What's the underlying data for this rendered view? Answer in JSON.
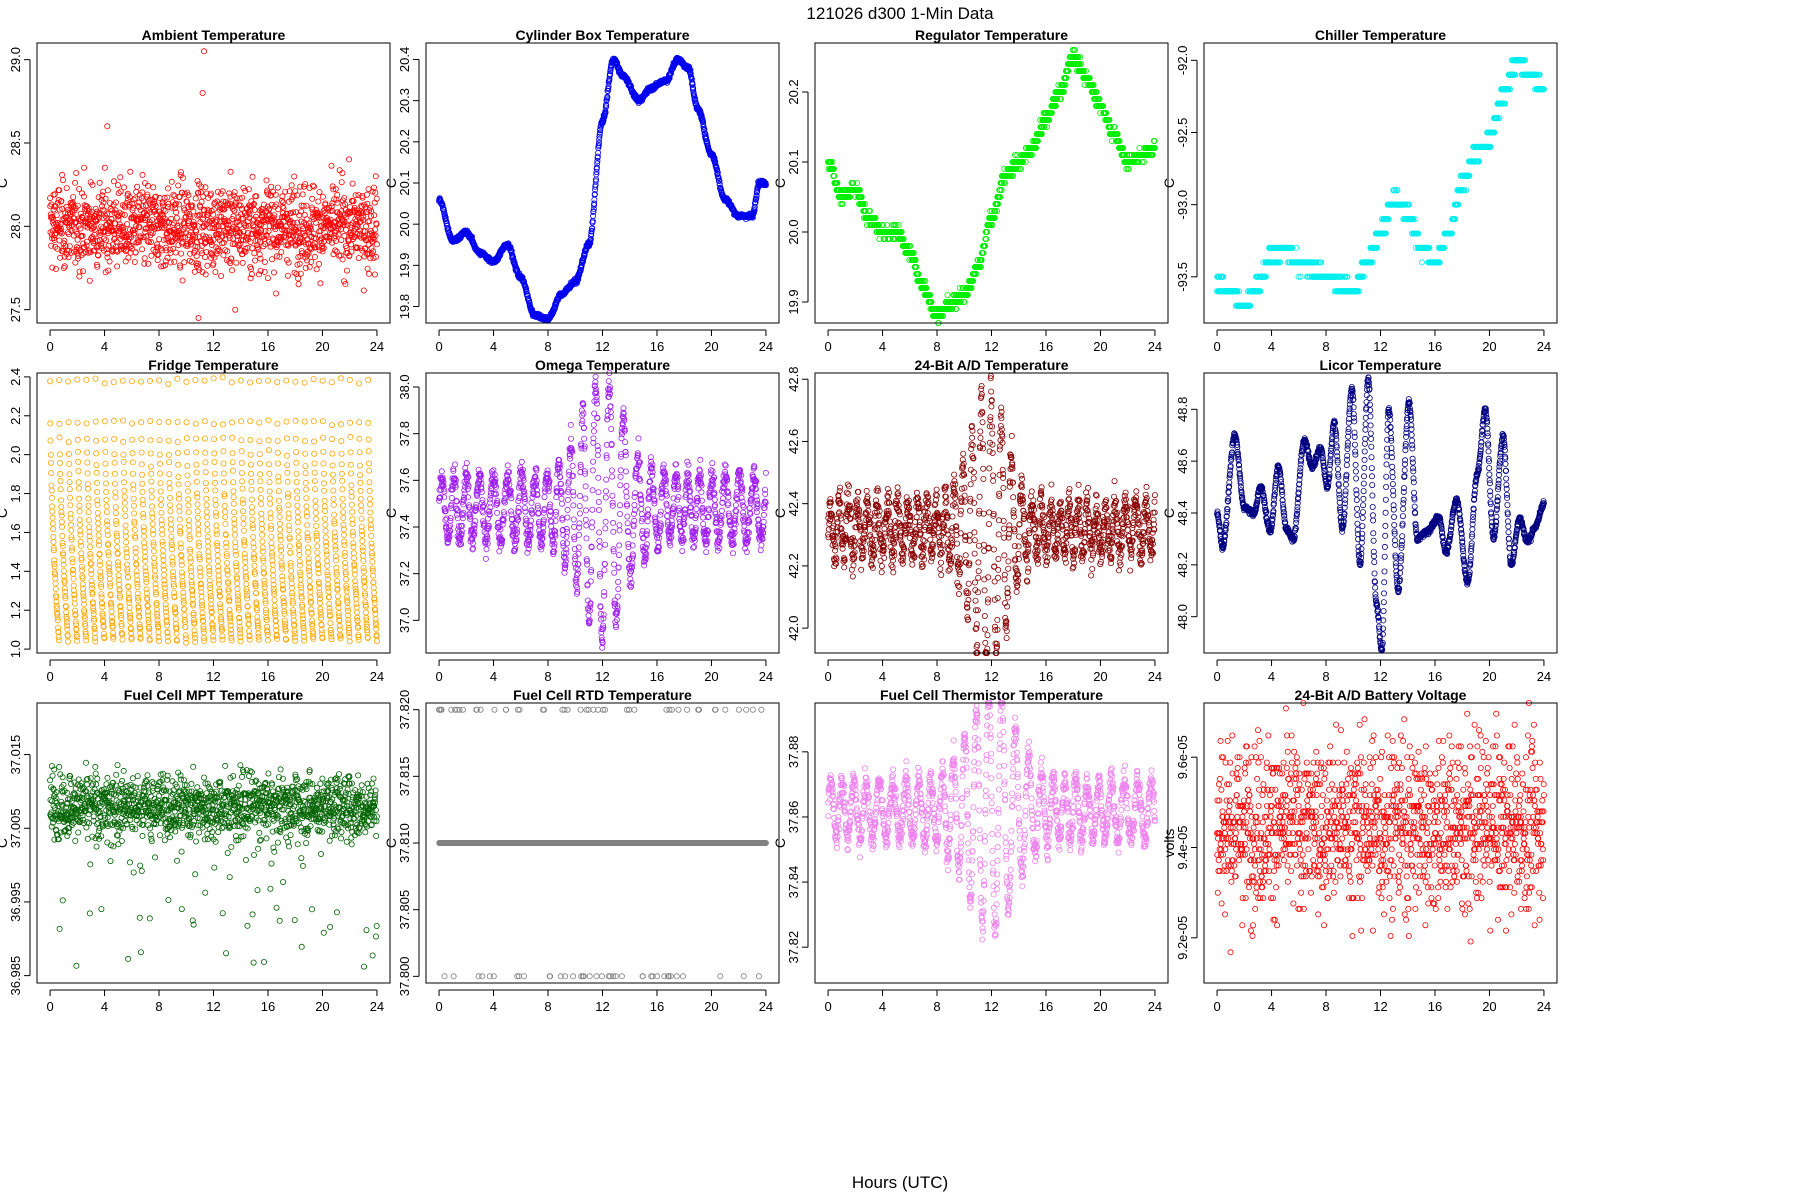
{
  "figure": {
    "title": "121026   d300   1-Min Data",
    "xlabel": "Hours (UTC)"
  },
  "chart_data": [
    {
      "type": "scatter",
      "title": "Ambient Temperature",
      "ylabel": "C",
      "color": "#ff0000",
      "xlim": [
        0,
        24
      ],
      "ylim": [
        27.42,
        29.1
      ],
      "xticks": [
        0,
        4,
        8,
        12,
        16,
        20,
        24
      ],
      "yticks": [
        27.5,
        28.0,
        28.5,
        29.0
      ],
      "ytick_labels": [
        "27.5",
        "28.0",
        "28.5",
        "29.0"
      ],
      "n_points": 1440,
      "gen": "noise",
      "params": {
        "base": 28.0,
        "amp": 0.18,
        "spikes": [
          [
            11.3,
            29.05
          ],
          [
            11.2,
            28.8
          ],
          [
            4.2,
            28.6
          ],
          [
            10.9,
            27.45
          ],
          [
            13.6,
            27.5
          ]
        ]
      }
    },
    {
      "type": "scatter",
      "title": "Cylinder Box Temperature",
      "ylabel": "C",
      "color": "#0000ee",
      "xlim": [
        0,
        24
      ],
      "ylim": [
        19.76,
        20.44
      ],
      "xticks": [
        0,
        4,
        8,
        12,
        16,
        20,
        24
      ],
      "yticks": [
        19.8,
        19.9,
        20.0,
        20.1,
        20.2,
        20.3,
        20.4
      ],
      "ytick_labels": [
        "19.8",
        "19.9",
        "20.0",
        "20.1",
        "20.2",
        "20.3",
        "20.4"
      ],
      "n_points": 1440,
      "gen": "path",
      "params": {
        "knots": [
          [
            0,
            20.06
          ],
          [
            1,
            19.96
          ],
          [
            2,
            19.98
          ],
          [
            3,
            19.93
          ],
          [
            4,
            19.91
          ],
          [
            5,
            19.95
          ],
          [
            6,
            19.87
          ],
          [
            7,
            19.78
          ],
          [
            8,
            19.77
          ],
          [
            9,
            19.83
          ],
          [
            10,
            19.86
          ],
          [
            11,
            19.95
          ],
          [
            12,
            20.25
          ],
          [
            12.8,
            20.4
          ],
          [
            13.5,
            20.36
          ],
          [
            14.7,
            20.3
          ],
          [
            15.5,
            20.33
          ],
          [
            16.7,
            20.35
          ],
          [
            17.5,
            20.4
          ],
          [
            18.3,
            20.38
          ],
          [
            19,
            20.28
          ],
          [
            20,
            20.17
          ],
          [
            21,
            20.06
          ],
          [
            22,
            20.02
          ],
          [
            23,
            20.02
          ],
          [
            23.5,
            20.1
          ],
          [
            24,
            20.1
          ]
        ],
        "noise": 0.004
      }
    },
    {
      "type": "scatter",
      "title": "Regulator Temperature",
      "ylabel": "C",
      "color": "#00ee00",
      "xlim": [
        0,
        24
      ],
      "ylim": [
        19.87,
        20.27
      ],
      "xticks": [
        0,
        4,
        8,
        12,
        16,
        20,
        24
      ],
      "yticks": [
        19.9,
        20.0,
        20.1,
        20.2
      ],
      "ytick_labels": [
        "19.9",
        "20.0",
        "20.1",
        "20.2"
      ],
      "n_points": 1440,
      "gen": "path",
      "params": {
        "knots": [
          [
            0,
            20.1
          ],
          [
            1,
            20.05
          ],
          [
            2,
            20.06
          ],
          [
            3,
            20.02
          ],
          [
            4,
            20.0
          ],
          [
            5,
            20.0
          ],
          [
            6,
            19.97
          ],
          [
            7,
            19.92
          ],
          [
            8,
            19.88
          ],
          [
            9,
            19.9
          ],
          [
            10,
            19.91
          ],
          [
            11,
            19.95
          ],
          [
            12,
            20.02
          ],
          [
            13,
            20.08
          ],
          [
            14,
            20.1
          ],
          [
            15,
            20.12
          ],
          [
            16,
            20.16
          ],
          [
            17,
            20.2
          ],
          [
            18,
            20.25
          ],
          [
            19,
            20.22
          ],
          [
            20,
            20.18
          ],
          [
            21,
            20.14
          ],
          [
            22,
            20.1
          ],
          [
            23,
            20.11
          ],
          [
            24,
            20.12
          ]
        ],
        "noise": 0.006,
        "quant": 0.01
      }
    },
    {
      "type": "scatter",
      "title": "Chiller Temperature",
      "ylabel": "C",
      "color": "#00eeee",
      "xlim": [
        0,
        24
      ],
      "ylim": [
        -93.82,
        -91.88
      ],
      "xticks": [
        0,
        4,
        8,
        12,
        16,
        20,
        24
      ],
      "yticks": [
        -93.5,
        -93.0,
        -92.5,
        -92.0
      ],
      "ytick_labels": [
        "-93.5",
        "-93.0",
        "-92.5",
        "-92.0"
      ],
      "n_points": 1440,
      "gen": "path",
      "params": {
        "knots": [
          [
            0,
            -93.55
          ],
          [
            1,
            -93.6
          ],
          [
            2,
            -93.7
          ],
          [
            3,
            -93.55
          ],
          [
            4,
            -93.35
          ],
          [
            5,
            -93.3
          ],
          [
            6,
            -93.4
          ],
          [
            7,
            -93.45
          ],
          [
            8,
            -93.5
          ],
          [
            9,
            -93.55
          ],
          [
            10,
            -93.6
          ],
          [
            11,
            -93.4
          ],
          [
            12,
            -93.2
          ],
          [
            13,
            -92.95
          ],
          [
            14,
            -93.05
          ],
          [
            15,
            -93.3
          ],
          [
            16,
            -93.4
          ],
          [
            17,
            -93.2
          ],
          [
            18,
            -92.85
          ],
          [
            19,
            -92.65
          ],
          [
            20,
            -92.55
          ],
          [
            21,
            -92.25
          ],
          [
            22,
            -92.0
          ],
          [
            23,
            -92.1
          ],
          [
            24,
            -92.2
          ]
        ],
        "noise": 0.03,
        "quant": 0.1
      }
    },
    {
      "type": "scatter",
      "title": "Fridge Temperature",
      "ylabel": "C",
      "color": "#ffa500",
      "xlim": [
        0,
        24
      ],
      "ylim": [
        0.98,
        2.42
      ],
      "xticks": [
        0,
        4,
        8,
        12,
        16,
        20,
        24
      ],
      "yticks": [
        1.0,
        1.2,
        1.4,
        1.6,
        1.8,
        2.0,
        2.2,
        2.4
      ],
      "ytick_labels": [
        "1.0",
        "1.2",
        "1.4",
        "1.6",
        "1.8",
        "2.0",
        "2.2",
        "2.4"
      ],
      "n_points": 1440,
      "gen": "sawtooth",
      "params": {
        "low": 1.03,
        "high": 2.38,
        "period_min": 40
      }
    },
    {
      "type": "scatter",
      "title": "Omega Temperature",
      "ylabel": "C",
      "color": "#a020f0",
      "xlim": [
        0,
        24
      ],
      "ylim": [
        36.86,
        38.06
      ],
      "xticks": [
        0,
        4,
        8,
        12,
        16,
        20,
        24
      ],
      "yticks": [
        37.0,
        37.2,
        37.4,
        37.6,
        37.8,
        38.0
      ],
      "ytick_labels": [
        "37.0",
        "37.2",
        "37.4",
        "37.6",
        "37.8",
        "38.0"
      ],
      "n_points": 1440,
      "gen": "osc",
      "params": {
        "base": 37.48,
        "amp": 0.14,
        "peak_center": 12,
        "peak_amp": 0.42,
        "peak_width": 2.2,
        "period": 0.95,
        "noise": 0.04
      }
    },
    {
      "type": "scatter",
      "title": "24-Bit A/D Temperature",
      "ylabel": "C",
      "color": "#8b0000",
      "xlim": [
        0,
        24
      ],
      "ylim": [
        41.92,
        42.82
      ],
      "xticks": [
        0,
        4,
        8,
        12,
        16,
        20,
        24
      ],
      "yticks": [
        42.0,
        42.2,
        42.4,
        42.6,
        42.8
      ],
      "ytick_labels": [
        "42.0",
        "42.2",
        "42.4",
        "42.6",
        "42.8"
      ],
      "n_points": 1440,
      "gen": "osc",
      "params": {
        "base": 42.32,
        "amp": 0.08,
        "peak_center": 11.8,
        "peak_amp": 0.38,
        "peak_width": 1.8,
        "period": 0.7,
        "noise": 0.045
      }
    },
    {
      "type": "scatter",
      "title": "Licor Temperature",
      "ylabel": "C",
      "color": "#000080",
      "xlim": [
        0,
        24
      ],
      "ylim": [
        47.86,
        48.94
      ],
      "xticks": [
        0,
        4,
        8,
        12,
        16,
        20,
        24
      ],
      "yticks": [
        48.0,
        48.2,
        48.4,
        48.6,
        48.8
      ],
      "ytick_labels": [
        "48.0",
        "48.2",
        "48.4",
        "48.6",
        "48.8"
      ],
      "n_points": 1440,
      "gen": "path",
      "params": {
        "knots": [
          [
            0,
            48.4
          ],
          [
            0.4,
            48.27
          ],
          [
            1.3,
            48.7
          ],
          [
            2,
            48.42
          ],
          [
            2.7,
            48.4
          ],
          [
            3.2,
            48.5
          ],
          [
            3.9,
            48.33
          ],
          [
            4.5,
            48.58
          ],
          [
            5.1,
            48.34
          ],
          [
            5.6,
            48.3
          ],
          [
            6.4,
            48.68
          ],
          [
            7,
            48.58
          ],
          [
            7.6,
            48.65
          ],
          [
            8.1,
            48.5
          ],
          [
            8.6,
            48.75
          ],
          [
            9.2,
            48.34
          ],
          [
            9.9,
            48.88
          ],
          [
            10.5,
            48.2
          ],
          [
            11.1,
            48.92
          ],
          [
            11.7,
            48.05
          ],
          [
            12.1,
            47.87
          ],
          [
            12.6,
            48.8
          ],
          [
            13.3,
            48.1
          ],
          [
            14.1,
            48.83
          ],
          [
            14.7,
            48.3
          ],
          [
            15.4,
            48.33
          ],
          [
            16.3,
            48.38
          ],
          [
            16.8,
            48.25
          ],
          [
            17.6,
            48.45
          ],
          [
            18.4,
            48.13
          ],
          [
            19.1,
            48.55
          ],
          [
            19.7,
            48.8
          ],
          [
            20.3,
            48.3
          ],
          [
            21,
            48.7
          ],
          [
            21.6,
            48.2
          ],
          [
            22.2,
            48.38
          ],
          [
            22.8,
            48.29
          ],
          [
            23.4,
            48.35
          ],
          [
            24,
            48.44
          ]
        ],
        "noise": 0.008
      }
    },
    {
      "type": "scatter",
      "title": "Fuel Cell MPT Temperature",
      "ylabel": "C",
      "color": "#006400",
      "xlim": [
        0,
        24
      ],
      "ylim": [
        36.984,
        37.022
      ],
      "xticks": [
        0,
        4,
        8,
        12,
        16,
        20,
        24
      ],
      "yticks": [
        36.985,
        36.995,
        37.005,
        37.015
      ],
      "ytick_labels": [
        "36.985",
        "36.995",
        "37.005",
        "37.015"
      ],
      "n_points": 1440,
      "gen": "noise",
      "params": {
        "base": 37.008,
        "amp": 0.003,
        "low_tail": 36.986,
        "tail_frac": 0.04
      }
    },
    {
      "type": "scatter",
      "title": "Fuel Cell RTD Temperature",
      "ylabel": "C",
      "color": "#808080",
      "xlim": [
        0,
        24
      ],
      "ylim": [
        37.7995,
        37.8205
      ],
      "xticks": [
        0,
        4,
        8,
        12,
        16,
        20,
        24
      ],
      "yticks": [
        37.8,
        37.805,
        37.81,
        37.815,
        37.82
      ],
      "ytick_labels": [
        "37.800",
        "37.805",
        "37.810",
        "37.815",
        "37.820"
      ],
      "n_points": 1440,
      "gen": "levels",
      "params": {
        "main": 37.81,
        "hi": 37.82,
        "lo": 37.8,
        "frac": 0.03
      }
    },
    {
      "type": "scatter",
      "title": "Fuel Cell Thermistor Temperature",
      "ylabel": "C",
      "color": "#ee82ee",
      "xlim": [
        0,
        24
      ],
      "ylim": [
        37.809,
        37.895
      ],
      "xticks": [
        0,
        4,
        8,
        12,
        16,
        20,
        24
      ],
      "yticks": [
        37.82,
        37.84,
        37.86,
        37.88
      ],
      "ytick_labels": [
        "37.82",
        "37.84",
        "37.86",
        "37.88"
      ],
      "n_points": 1440,
      "gen": "osc",
      "params": {
        "base": 37.862,
        "amp": 0.009,
        "peak_center": 12,
        "peak_amp": 0.028,
        "peak_width": 2.4,
        "period": 0.9,
        "noise": 0.003
      }
    },
    {
      "type": "scatter",
      "title": "24-Bit A/D Battery Voltage",
      "ylabel": "volts",
      "color": "#ff0000",
      "xlim": [
        0,
        24
      ],
      "ylim": [
        9.1e-05,
        9.72e-05
      ],
      "xticks": [
        0,
        4,
        8,
        12,
        16,
        20,
        24
      ],
      "yticks": [
        9.2e-05,
        9.4e-05,
        9.6e-05
      ],
      "ytick_labels": [
        "9.2e-05",
        "9.4e-05",
        "9.6e-05"
      ],
      "n_points": 1440,
      "gen": "noise",
      "params": {
        "base": 9.45e-05,
        "amp": 1.3e-06,
        "quant": 1.2e-07
      }
    }
  ]
}
